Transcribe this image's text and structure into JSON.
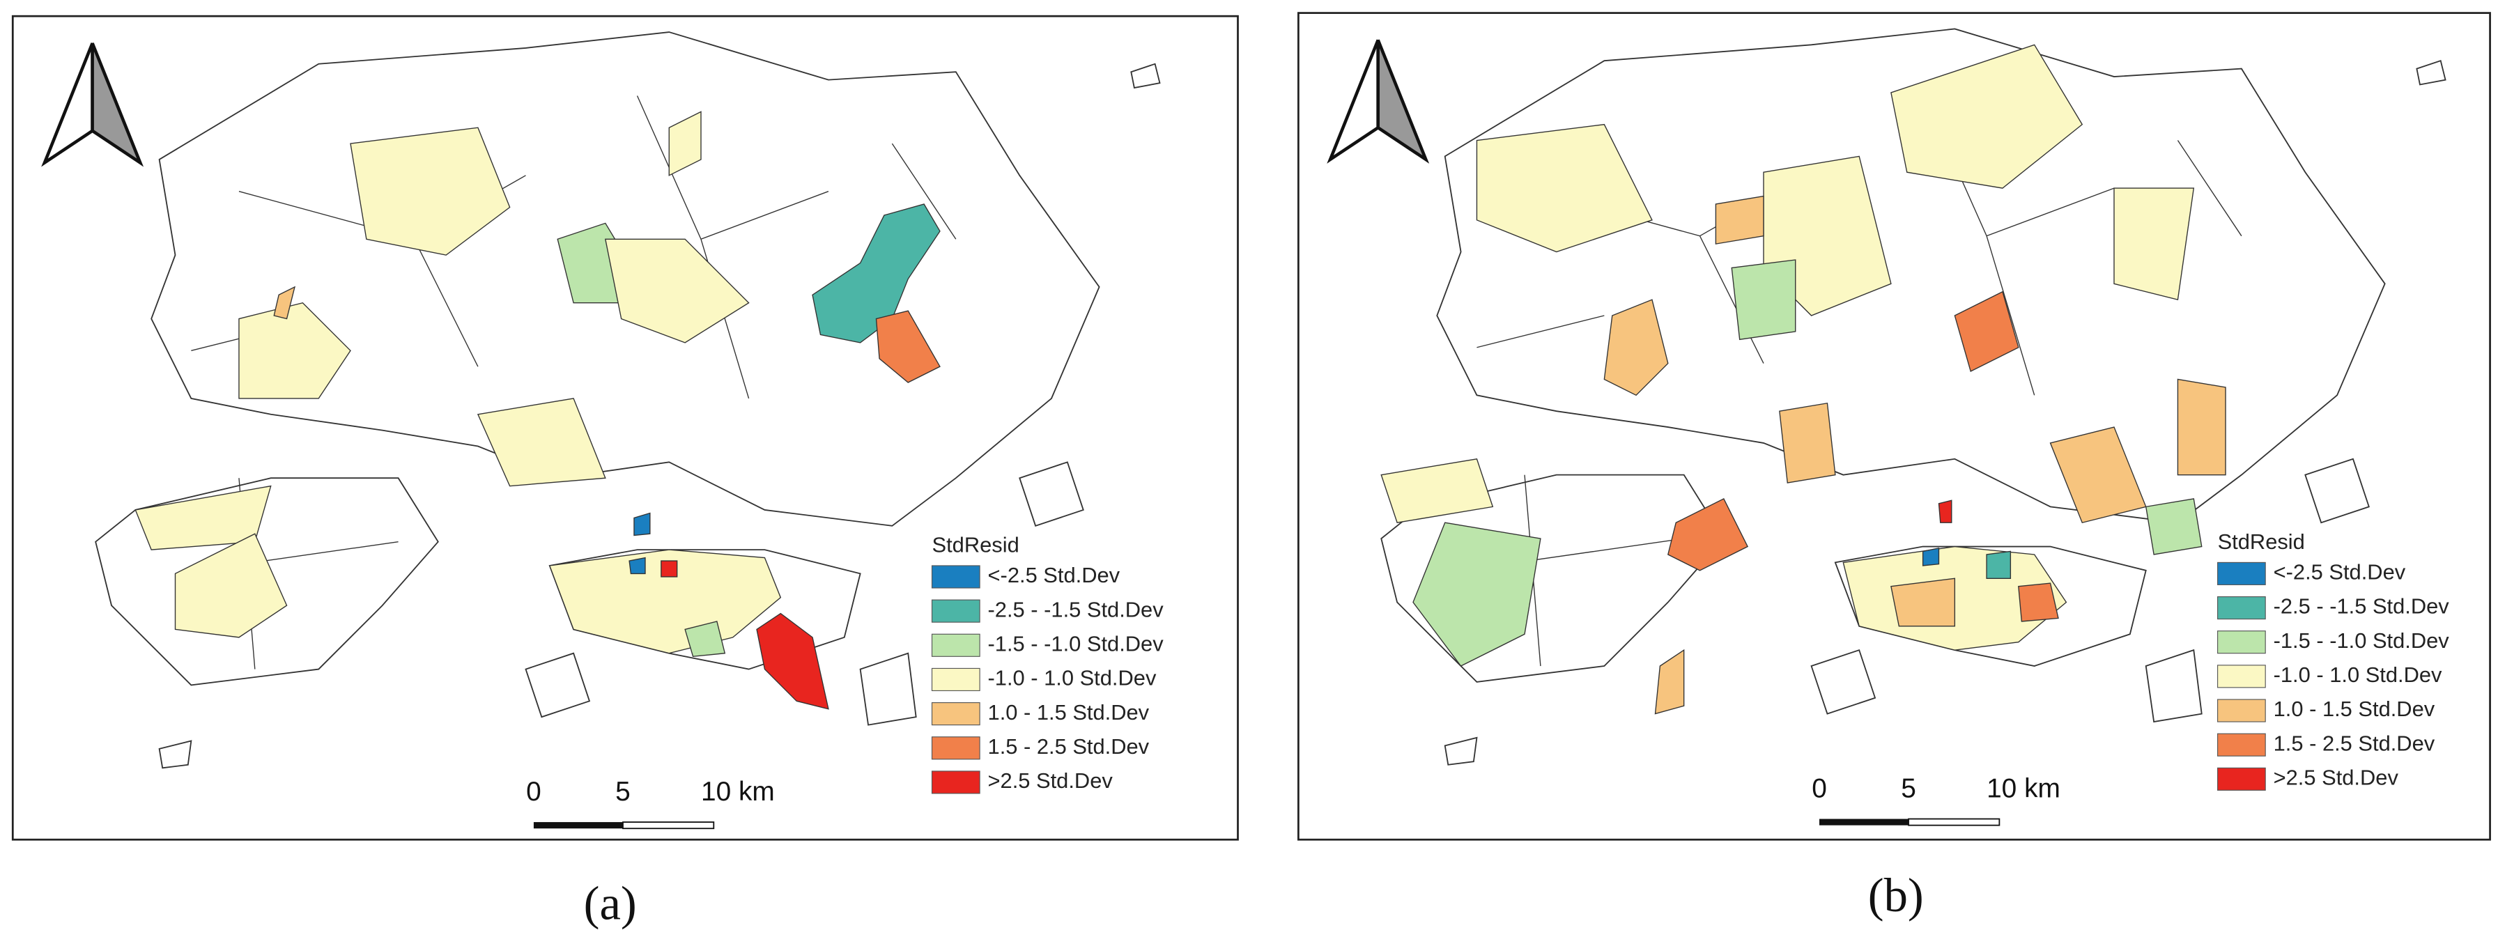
{
  "legend": {
    "title": "StdResid",
    "items": [
      {
        "label": "<-2.5 Std.Dev",
        "color": "#1a7fc0"
      },
      {
        "label": "-2.5 - -1.5 Std.Dev",
        "color": "#4cb5a6"
      },
      {
        "label": "-1.5 - -1.0 Std.Dev",
        "color": "#bce5ab"
      },
      {
        "label": "-1.0 - 1.0 Std.Dev",
        "color": "#fbf8c4"
      },
      {
        "label": "1.0 - 1.5 Std.Dev",
        "color": "#f7c47e"
      },
      {
        "label": "1.5 - 2.5 Std.Dev",
        "color": "#f1804a"
      },
      {
        "label": ">2.5 Std.Dev",
        "color": "#e8251f"
      }
    ]
  },
  "scale_bar": {
    "labels": [
      "0",
      "5",
      "10 km"
    ]
  },
  "panels": [
    {
      "label": "(a)"
    },
    {
      "label": "(b)"
    }
  ]
}
